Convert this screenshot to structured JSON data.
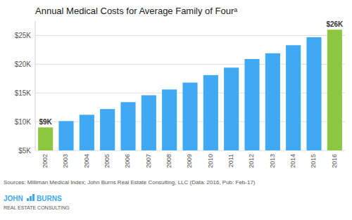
{
  "chart_data": {
    "type": "bar",
    "title": "Annual Medical Costs for Average Family of Fourᵃ",
    "categories": [
      "2002",
      "2003",
      "2004",
      "2005",
      "2006",
      "2007",
      "2008",
      "2009",
      "2010",
      "2011",
      "2012",
      "2013",
      "2014",
      "2015",
      "2016"
    ],
    "values": [
      9000,
      10100,
      11200,
      12200,
      13400,
      14600,
      15600,
      16800,
      18100,
      19400,
      20900,
      21900,
      23300,
      24700,
      26000
    ],
    "colors": [
      "#8dc63f",
      "#3fa9f5",
      "#3fa9f5",
      "#3fa9f5",
      "#3fa9f5",
      "#3fa9f5",
      "#3fa9f5",
      "#3fa9f5",
      "#3fa9f5",
      "#3fa9f5",
      "#3fa9f5",
      "#3fa9f5",
      "#3fa9f5",
      "#3fa9f5",
      "#8dc63f"
    ],
    "ylim": [
      5000,
      27500
    ],
    "yticks": [
      {
        "value": 5000,
        "label": "$5K"
      },
      {
        "value": 10000,
        "label": "$10K"
      },
      {
        "value": 15000,
        "label": "$15K"
      },
      {
        "value": 20000,
        "label": "$20K"
      },
      {
        "value": 25000,
        "label": "$25K"
      }
    ],
    "grid": true,
    "annotations": [
      {
        "text": "$9K",
        "category": "2002",
        "value": 9000
      },
      {
        "text": "$26K",
        "category": "2016",
        "value": 26000
      }
    ],
    "source": "Sources: Milliman Medical Index; John Burns Real Estate Consulting, LLC (Data: 2016, Pub: Feb-17)",
    "logo": {
      "words": [
        "JOHN",
        "BURNS"
      ],
      "tagline": "REAL ESTATE CONSULTING",
      "color": "#3fa9f5"
    }
  }
}
